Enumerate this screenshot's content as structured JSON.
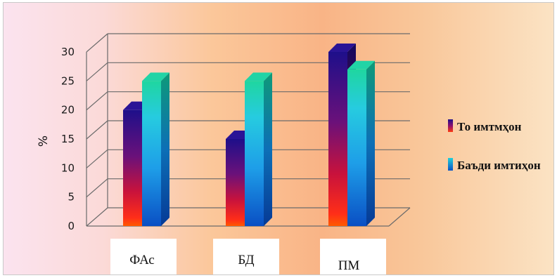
{
  "chart_data": {
    "type": "bar",
    "title": "",
    "xlabel": "",
    "ylabel": "%",
    "ylim": [
      0,
      30
    ],
    "yticks": [
      0,
      5,
      10,
      15,
      20,
      25,
      30
    ],
    "grid": true,
    "legend_position": "right",
    "categories": [
      "ФАс",
      "БД",
      "ПМ"
    ],
    "series": [
      {
        "name": "То имтмҳон",
        "values": [
          20,
          15,
          30
        ]
      },
      {
        "name": "Баъди имтиҳон",
        "values": [
          25,
          25,
          27
        ]
      }
    ]
  },
  "colors": {
    "series_1": [
      "#1e0f8a",
      "#6a117a",
      "#d0143c",
      "#ff4a00"
    ],
    "series_2": [
      "#1fd3a0",
      "#22c8e6",
      "#1a9be6",
      "#0a52c8"
    ]
  }
}
